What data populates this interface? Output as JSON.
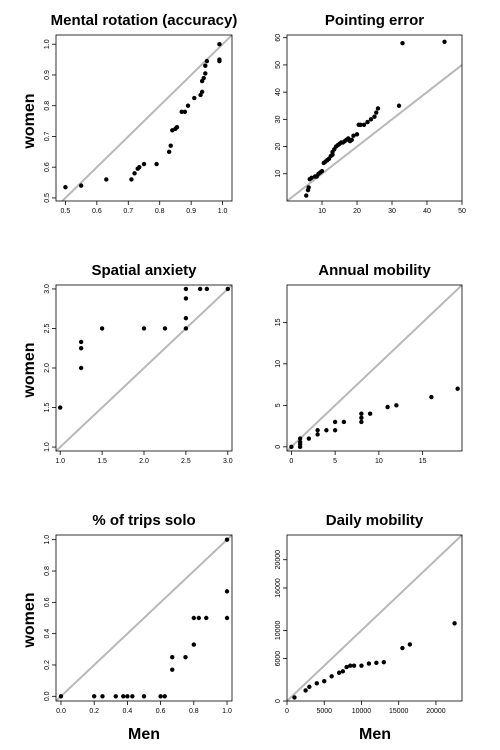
{
  "figure": {
    "row_label": "women",
    "col_label": "Men",
    "colors": {
      "points": "#000000",
      "diagonal": "#b8b8b8",
      "frame": "#000000"
    }
  },
  "chart_data": [
    {
      "type": "scatter",
      "title": "Mental rotation (accuracy)",
      "xlabel": "",
      "ylabel": "women",
      "xlim": [
        0.47,
        1.03
      ],
      "ylim": [
        0.49,
        1.03
      ],
      "xticks": [
        0.5,
        0.6,
        0.7,
        0.8,
        0.9,
        1.0
      ],
      "xtick_labels": [
        "0.5",
        "0.6",
        "0.7",
        "0.8",
        "0.9",
        "1.0"
      ],
      "yticks": [
        0.5,
        0.6,
        0.7,
        0.8,
        0.9,
        1.0
      ],
      "ytick_labels": [
        "0.5",
        "0.6",
        "0.7",
        "0.8",
        "0.9",
        "1.0"
      ],
      "diagonal": true,
      "points": [
        [
          0.5,
          0.535
        ],
        [
          0.55,
          0.54
        ],
        [
          0.63,
          0.56
        ],
        [
          0.71,
          0.56
        ],
        [
          0.72,
          0.58
        ],
        [
          0.73,
          0.595
        ],
        [
          0.735,
          0.6
        ],
        [
          0.75,
          0.61
        ],
        [
          0.79,
          0.61
        ],
        [
          0.83,
          0.65
        ],
        [
          0.835,
          0.67
        ],
        [
          0.84,
          0.72
        ],
        [
          0.85,
          0.725
        ],
        [
          0.855,
          0.73
        ],
        [
          0.87,
          0.78
        ],
        [
          0.88,
          0.78
        ],
        [
          0.89,
          0.8
        ],
        [
          0.91,
          0.825
        ],
        [
          0.93,
          0.835
        ],
        [
          0.935,
          0.845
        ],
        [
          0.935,
          0.88
        ],
        [
          0.94,
          0.89
        ],
        [
          0.945,
          0.905
        ],
        [
          0.945,
          0.93
        ],
        [
          0.95,
          0.945
        ],
        [
          0.99,
          0.945
        ],
        [
          0.99,
          0.95
        ],
        [
          0.99,
          1.0
        ]
      ]
    },
    {
      "type": "scatter",
      "title": "Pointing error",
      "xlabel": "",
      "ylabel": "",
      "xlim": [
        0,
        50
      ],
      "ylim": [
        0,
        61
      ],
      "xticks": [
        10,
        20,
        30,
        40,
        50
      ],
      "xtick_labels": [
        "10",
        "20",
        "30",
        "40",
        "50"
      ],
      "yticks": [
        10,
        20,
        30,
        40,
        50,
        60
      ],
      "ytick_labels": [
        "10",
        "20",
        "30",
        "40",
        "50",
        "60"
      ],
      "diagonal": true,
      "points": [
        [
          5.5,
          2
        ],
        [
          6,
          4
        ],
        [
          6.2,
          5
        ],
        [
          6.5,
          8
        ],
        [
          7,
          8.5
        ],
        [
          8,
          9
        ],
        [
          8.5,
          9
        ],
        [
          9,
          10
        ],
        [
          9.5,
          10.5
        ],
        [
          10,
          11
        ],
        [
          10.5,
          14
        ],
        [
          11,
          14.5
        ],
        [
          11.5,
          15
        ],
        [
          12,
          15.5
        ],
        [
          12.5,
          16.5
        ],
        [
          13,
          17
        ],
        [
          13,
          18
        ],
        [
          13.5,
          19
        ],
        [
          14,
          20
        ],
        [
          14.5,
          20.5
        ],
        [
          15,
          21
        ],
        [
          15.5,
          21.5
        ],
        [
          16,
          21.5
        ],
        [
          16.5,
          22
        ],
        [
          17,
          22.5
        ],
        [
          17.5,
          23
        ],
        [
          18,
          22
        ],
        [
          18.5,
          22.5
        ],
        [
          19,
          24
        ],
        [
          20,
          24.5
        ],
        [
          20.5,
          28
        ],
        [
          21,
          28
        ],
        [
          22,
          28
        ],
        [
          23,
          29
        ],
        [
          24,
          30
        ],
        [
          25,
          31
        ],
        [
          25.5,
          32.5
        ],
        [
          26,
          34
        ],
        [
          32,
          35
        ],
        [
          33,
          58
        ],
        [
          45,
          58.5
        ]
      ]
    },
    {
      "type": "scatter",
      "title": "Spatial anxiety",
      "xlabel": "",
      "ylabel": "women",
      "xlim": [
        0.95,
        3.05
      ],
      "ylim": [
        0.95,
        3.05
      ],
      "xticks": [
        1.0,
        1.5,
        2.0,
        2.5,
        3.0
      ],
      "xtick_labels": [
        "1.0",
        "1.5",
        "2.0",
        "2.5",
        "3.0"
      ],
      "yticks": [
        1.0,
        1.5,
        2.0,
        2.5,
        3.0
      ],
      "ytick_labels": [
        "1.0",
        "1.5",
        "2.0",
        "2.5",
        "3.0"
      ],
      "diagonal": true,
      "points": [
        [
          1,
          1.5
        ],
        [
          1.25,
          2
        ],
        [
          1.25,
          2.25
        ],
        [
          1.25,
          2.33
        ],
        [
          1.5,
          2.5
        ],
        [
          2,
          2.5
        ],
        [
          2.25,
          2.5
        ],
        [
          2.5,
          2.5
        ],
        [
          2.5,
          2.63
        ],
        [
          2.5,
          2.88
        ],
        [
          2.5,
          3
        ],
        [
          2.67,
          3
        ],
        [
          2.75,
          3
        ],
        [
          3,
          3
        ]
      ]
    },
    {
      "type": "scatter",
      "title": "Annual mobility",
      "xlabel": "",
      "ylabel": "",
      "xlim": [
        -0.5,
        19.5
      ],
      "ylim": [
        -0.5,
        19.5
      ],
      "xticks": [
        0,
        5,
        10,
        15
      ],
      "xtick_labels": [
        "0",
        "5",
        "10",
        "15"
      ],
      "yticks": [
        0,
        5,
        10,
        15
      ],
      "ytick_labels": [
        "0",
        "5",
        "10",
        "15"
      ],
      "diagonal": true,
      "points": [
        [
          0,
          0
        ],
        [
          1,
          0
        ],
        [
          1,
          0.3
        ],
        [
          1,
          0.6
        ],
        [
          1,
          1
        ],
        [
          2,
          1
        ],
        [
          3,
          1.5
        ],
        [
          3,
          2
        ],
        [
          4,
          2
        ],
        [
          5,
          2
        ],
        [
          5,
          3
        ],
        [
          6,
          3
        ],
        [
          8,
          3
        ],
        [
          8,
          3.5
        ],
        [
          8,
          4
        ],
        [
          9,
          4
        ],
        [
          11,
          4.8
        ],
        [
          12,
          5
        ],
        [
          16,
          6
        ],
        [
          19,
          7
        ]
      ]
    },
    {
      "type": "scatter",
      "title": "% of trips solo",
      "xlabel": "Men",
      "ylabel": "women",
      "xlim": [
        -0.03,
        1.03
      ],
      "ylim": [
        -0.03,
        1.03
      ],
      "xticks": [
        0.0,
        0.2,
        0.4,
        0.6,
        0.8,
        1.0
      ],
      "xtick_labels": [
        "0.0",
        "0.2",
        "0.4",
        "0.6",
        "0.8",
        "1.0"
      ],
      "yticks": [
        0.0,
        0.2,
        0.4,
        0.6,
        0.8,
        1.0
      ],
      "ytick_labels": [
        "0.0",
        "0.2",
        "0.4",
        "0.6",
        "0.8",
        "1.0"
      ],
      "diagonal": true,
      "points": [
        [
          0,
          0
        ],
        [
          0.2,
          0
        ],
        [
          0.25,
          0
        ],
        [
          0.33,
          0
        ],
        [
          0.375,
          0
        ],
        [
          0.4,
          0
        ],
        [
          0.43,
          0
        ],
        [
          0.5,
          0
        ],
        [
          0.6,
          0
        ],
        [
          0.625,
          0
        ],
        [
          0.67,
          0.17
        ],
        [
          0.67,
          0.25
        ],
        [
          0.75,
          0.25
        ],
        [
          0.8,
          0.33
        ],
        [
          0.8,
          0.5
        ],
        [
          0.83,
          0.5
        ],
        [
          0.875,
          0.5
        ],
        [
          1,
          0.5
        ],
        [
          1,
          0.67
        ],
        [
          1,
          1
        ]
      ]
    },
    {
      "type": "scatter",
      "title": "Daily mobility",
      "xlabel": "Men",
      "ylabel": "",
      "xlim": [
        0,
        23500
      ],
      "ylim": [
        0,
        23500
      ],
      "xticks": [
        0,
        5000,
        10000,
        15000,
        20000
      ],
      "xtick_labels": [
        "0",
        "5000",
        "10000",
        "15000",
        "20000"
      ],
      "yticks": [
        0,
        6000,
        10000,
        16000,
        20000
      ],
      "ytick_labels": [
        "0",
        "6000",
        "10000",
        "16000",
        "20000"
      ],
      "diagonal": true,
      "points": [
        [
          1000,
          500
        ],
        [
          2500,
          1500
        ],
        [
          3000,
          2000
        ],
        [
          4000,
          2500
        ],
        [
          5000,
          2800
        ],
        [
          6000,
          3500
        ],
        [
          7000,
          4000
        ],
        [
          7500,
          4200
        ],
        [
          8000,
          4800
        ],
        [
          8500,
          5000
        ],
        [
          9000,
          5000
        ],
        [
          10000,
          5000
        ],
        [
          11000,
          5300
        ],
        [
          12000,
          5400
        ],
        [
          13000,
          5500
        ],
        [
          15500,
          7500
        ],
        [
          16500,
          8000
        ],
        [
          22500,
          11000
        ]
      ]
    }
  ]
}
